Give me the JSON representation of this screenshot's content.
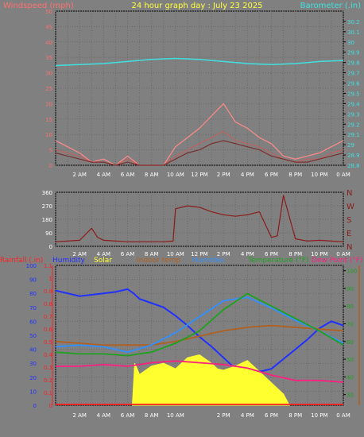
{
  "chart_data": [
    {
      "type": "line",
      "title": "24 hour graph day : July 23 2025",
      "left_axis_label": "Windspeed (mph)",
      "right_axis_label": "Barometer (.in)",
      "x_ticks": [
        "2 AM",
        "4 AM",
        "6 AM",
        "8 AM",
        "10 AM",
        "12 PM",
        "2 PM",
        "4 PM",
        "6 PM",
        "8 PM",
        "10 PM",
        "0 AM"
      ],
      "ylim_left": [
        0,
        50
      ],
      "y_ticks_left": [
        "0",
        "5",
        "10",
        "15",
        "20",
        "25",
        "30",
        "35",
        "40",
        "45",
        "50"
      ],
      "ylim_right": [
        28.8,
        30.3
      ],
      "y_ticks_right": [
        "28.8",
        "28.9",
        "29",
        "29.1",
        "29.2",
        "29.3",
        "29.4",
        "29.5",
        "29.6",
        "29.7",
        "29.8",
        "29.9",
        "30",
        "30.1",
        "30.2"
      ],
      "grid": true,
      "colors": {
        "gust": "#ff8a8a",
        "wind": "#c06060",
        "avg": "#7a2f2f",
        "barometer": "#40e0e0",
        "left_label": "#ff7070",
        "right_label": "#40e0e0",
        "title": "#ffff40"
      },
      "series": [
        {
          "name": "gust",
          "x": [
            0,
            1,
            2,
            3,
            4,
            5,
            6,
            7,
            8,
            9,
            10,
            11,
            12,
            13,
            14,
            15,
            16,
            17,
            18,
            19,
            20,
            21,
            22,
            23,
            24
          ],
          "values": [
            8,
            6,
            4,
            1,
            2,
            0,
            3,
            0,
            0,
            0,
            6,
            9,
            12,
            16,
            20,
            14,
            12,
            9,
            7,
            3,
            2,
            3,
            4,
            6,
            8
          ]
        },
        {
          "name": "wind",
          "x": [
            0,
            1,
            2,
            3,
            4,
            5,
            6,
            7,
            8,
            9,
            10,
            11,
            12,
            13,
            14,
            15,
            16,
            17,
            18,
            19,
            20,
            21,
            22,
            23,
            24
          ],
          "values": [
            5,
            4,
            3,
            1,
            1,
            0,
            2,
            0,
            0,
            0,
            3,
            5,
            7,
            9,
            11,
            8,
            7,
            6,
            4,
            2,
            1,
            2,
            2,
            4,
            5
          ]
        },
        {
          "name": "average",
          "x": [
            0,
            1,
            2,
            3,
            4,
            5,
            6,
            7,
            8,
            9,
            10,
            11,
            12,
            13,
            14,
            15,
            16,
            17,
            18,
            19,
            20,
            21,
            22,
            23,
            24
          ],
          "values": [
            4,
            3,
            2,
            1,
            1,
            0,
            1,
            0,
            0,
            0,
            2,
            4,
            5,
            7,
            8,
            7,
            6,
            5,
            3,
            2,
            1,
            1,
            2,
            3,
            4
          ]
        },
        {
          "name": "barometer",
          "x": [
            0,
            2,
            4,
            6,
            8,
            10,
            12,
            14,
            16,
            18,
            20,
            22,
            24
          ],
          "values": [
            29.77,
            29.78,
            29.79,
            29.81,
            29.83,
            29.84,
            29.83,
            29.81,
            29.79,
            29.78,
            29.79,
            29.81,
            29.82
          ]
        }
      ]
    },
    {
      "type": "line",
      "x_ticks": [
        "2 AM",
        "4 AM",
        "6 AM",
        "8 AM",
        "10 AM",
        "12 PM",
        "2 PM",
        "4 PM",
        "6 PM",
        "8 PM",
        "10 PM",
        "0 AM"
      ],
      "ylim": [
        0,
        360
      ],
      "y_ticks": [
        "0",
        "90",
        "180",
        "270",
        "360"
      ],
      "direction_labels": [
        "N",
        "W",
        "S",
        "E",
        "N"
      ],
      "grid": true,
      "colors": {
        "direction": "#8b1a1a",
        "labels": "#8b1a1a",
        "ticks": "#ffffff"
      },
      "series": [
        {
          "name": "wind direction",
          "x": [
            0,
            1,
            2,
            3,
            3.5,
            4,
            5,
            6,
            7,
            8,
            9,
            9.8,
            10,
            11,
            12,
            13,
            14,
            15,
            16,
            17,
            18,
            18.5,
            19,
            20,
            21,
            22,
            23,
            24
          ],
          "values": [
            30,
            35,
            40,
            120,
            60,
            40,
            35,
            30,
            30,
            30,
            30,
            35,
            250,
            270,
            260,
            230,
            210,
            200,
            210,
            230,
            60,
            70,
            340,
            50,
            35,
            40,
            35,
            30
          ]
        }
      ]
    },
    {
      "type": "line",
      "legend_labels": [
        "Rainfall (.in)",
        "Humidity",
        "Solar",
        "Indoor temp",
        "Humidex",
        "Temperature (°F)",
        "Dew Point (°F)"
      ],
      "legend_colors": [
        "#ff2020",
        "#2030ff",
        "#ffff30",
        "#b06020",
        "#3090ff",
        "#20a020",
        "#ff2080"
      ],
      "x_ticks": [
        "2 AM",
        "4 AM",
        "6 AM",
        "8 AM",
        "10 AM",
        "2 PM",
        "4 PM",
        "6 PM",
        "8 PM",
        "10 PM",
        "0 AM"
      ],
      "left_ticks_pct": [
        "0",
        "10",
        "20",
        "30",
        "40",
        "50",
        "60",
        "70",
        "80",
        "90",
        "100"
      ],
      "left_ticks_rain": [
        "0",
        "0.1",
        "0.2",
        "0.3",
        "0.4",
        "0.5",
        "0.6",
        "0.7",
        "0.8",
        "0.9",
        "1",
        "1.1"
      ],
      "right_ticks_temp": [
        "30",
        "40",
        "50",
        "60",
        "70",
        "80",
        "90",
        "100"
      ],
      "ylim_pct": [
        0,
        100
      ],
      "ylim_rain": [
        0,
        1.1
      ],
      "ylim_temp": [
        24,
        103
      ],
      "grid": true,
      "series": [
        {
          "name": "Humidity",
          "x": [
            0,
            1,
            2,
            3,
            4,
            5,
            6,
            6.5,
            7,
            8,
            9,
            10,
            11,
            12,
            13,
            14,
            15,
            16,
            17,
            18,
            19,
            20,
            21,
            22,
            23,
            24
          ],
          "values": [
            82,
            80,
            78,
            79,
            80,
            81,
            83,
            80,
            76,
            73,
            70,
            64,
            57,
            49,
            42,
            34,
            26,
            25,
            24,
            26,
            33,
            40,
            47,
            55,
            60,
            57
          ]
        },
        {
          "name": "Solar",
          "x": [
            6.4,
            6.6,
            7,
            8,
            9,
            10,
            11,
            12,
            13,
            13.5,
            14,
            15,
            16,
            17,
            18,
            19,
            19.5
          ],
          "values": [
            0,
            30,
            22,
            28,
            30,
            26,
            34,
            36,
            30,
            26,
            25,
            28,
            32,
            24,
            16,
            8,
            0
          ]
        },
        {
          "name": "Indoor temp",
          "x": [
            0,
            2,
            4,
            6,
            8,
            10,
            12,
            14,
            16,
            18,
            20,
            22,
            24
          ],
          "values": [
            60,
            59,
            58,
            58,
            58,
            60,
            63,
            66,
            68,
            69,
            68,
            67,
            66
          ]
        },
        {
          "name": "Humidex",
          "x": [
            0,
            2,
            4,
            6,
            8,
            10,
            12,
            14,
            16,
            18,
            20,
            22,
            24
          ],
          "values": [
            57,
            58,
            57,
            54,
            58,
            65,
            74,
            83,
            85,
            79,
            72,
            66,
            59
          ]
        },
        {
          "name": "Temperature (°F)",
          "x": [
            0,
            2,
            4,
            6,
            8,
            10,
            12,
            14,
            16,
            18,
            20,
            22,
            24
          ],
          "values": [
            54,
            53,
            53,
            52,
            54,
            59,
            66,
            78,
            87,
            80,
            73,
            66,
            58
          ]
        },
        {
          "name": "Dew Point (°F)",
          "x": [
            0,
            2,
            4,
            6,
            8,
            10,
            12,
            14,
            16,
            18,
            20,
            22,
            24
          ],
          "values": [
            46,
            46,
            47,
            46,
            48,
            49,
            48,
            47,
            45,
            41,
            38,
            38,
            37
          ]
        },
        {
          "name": "Rainfall (.in)",
          "x": [
            0,
            24
          ],
          "values": [
            0,
            0
          ]
        }
      ]
    }
  ]
}
